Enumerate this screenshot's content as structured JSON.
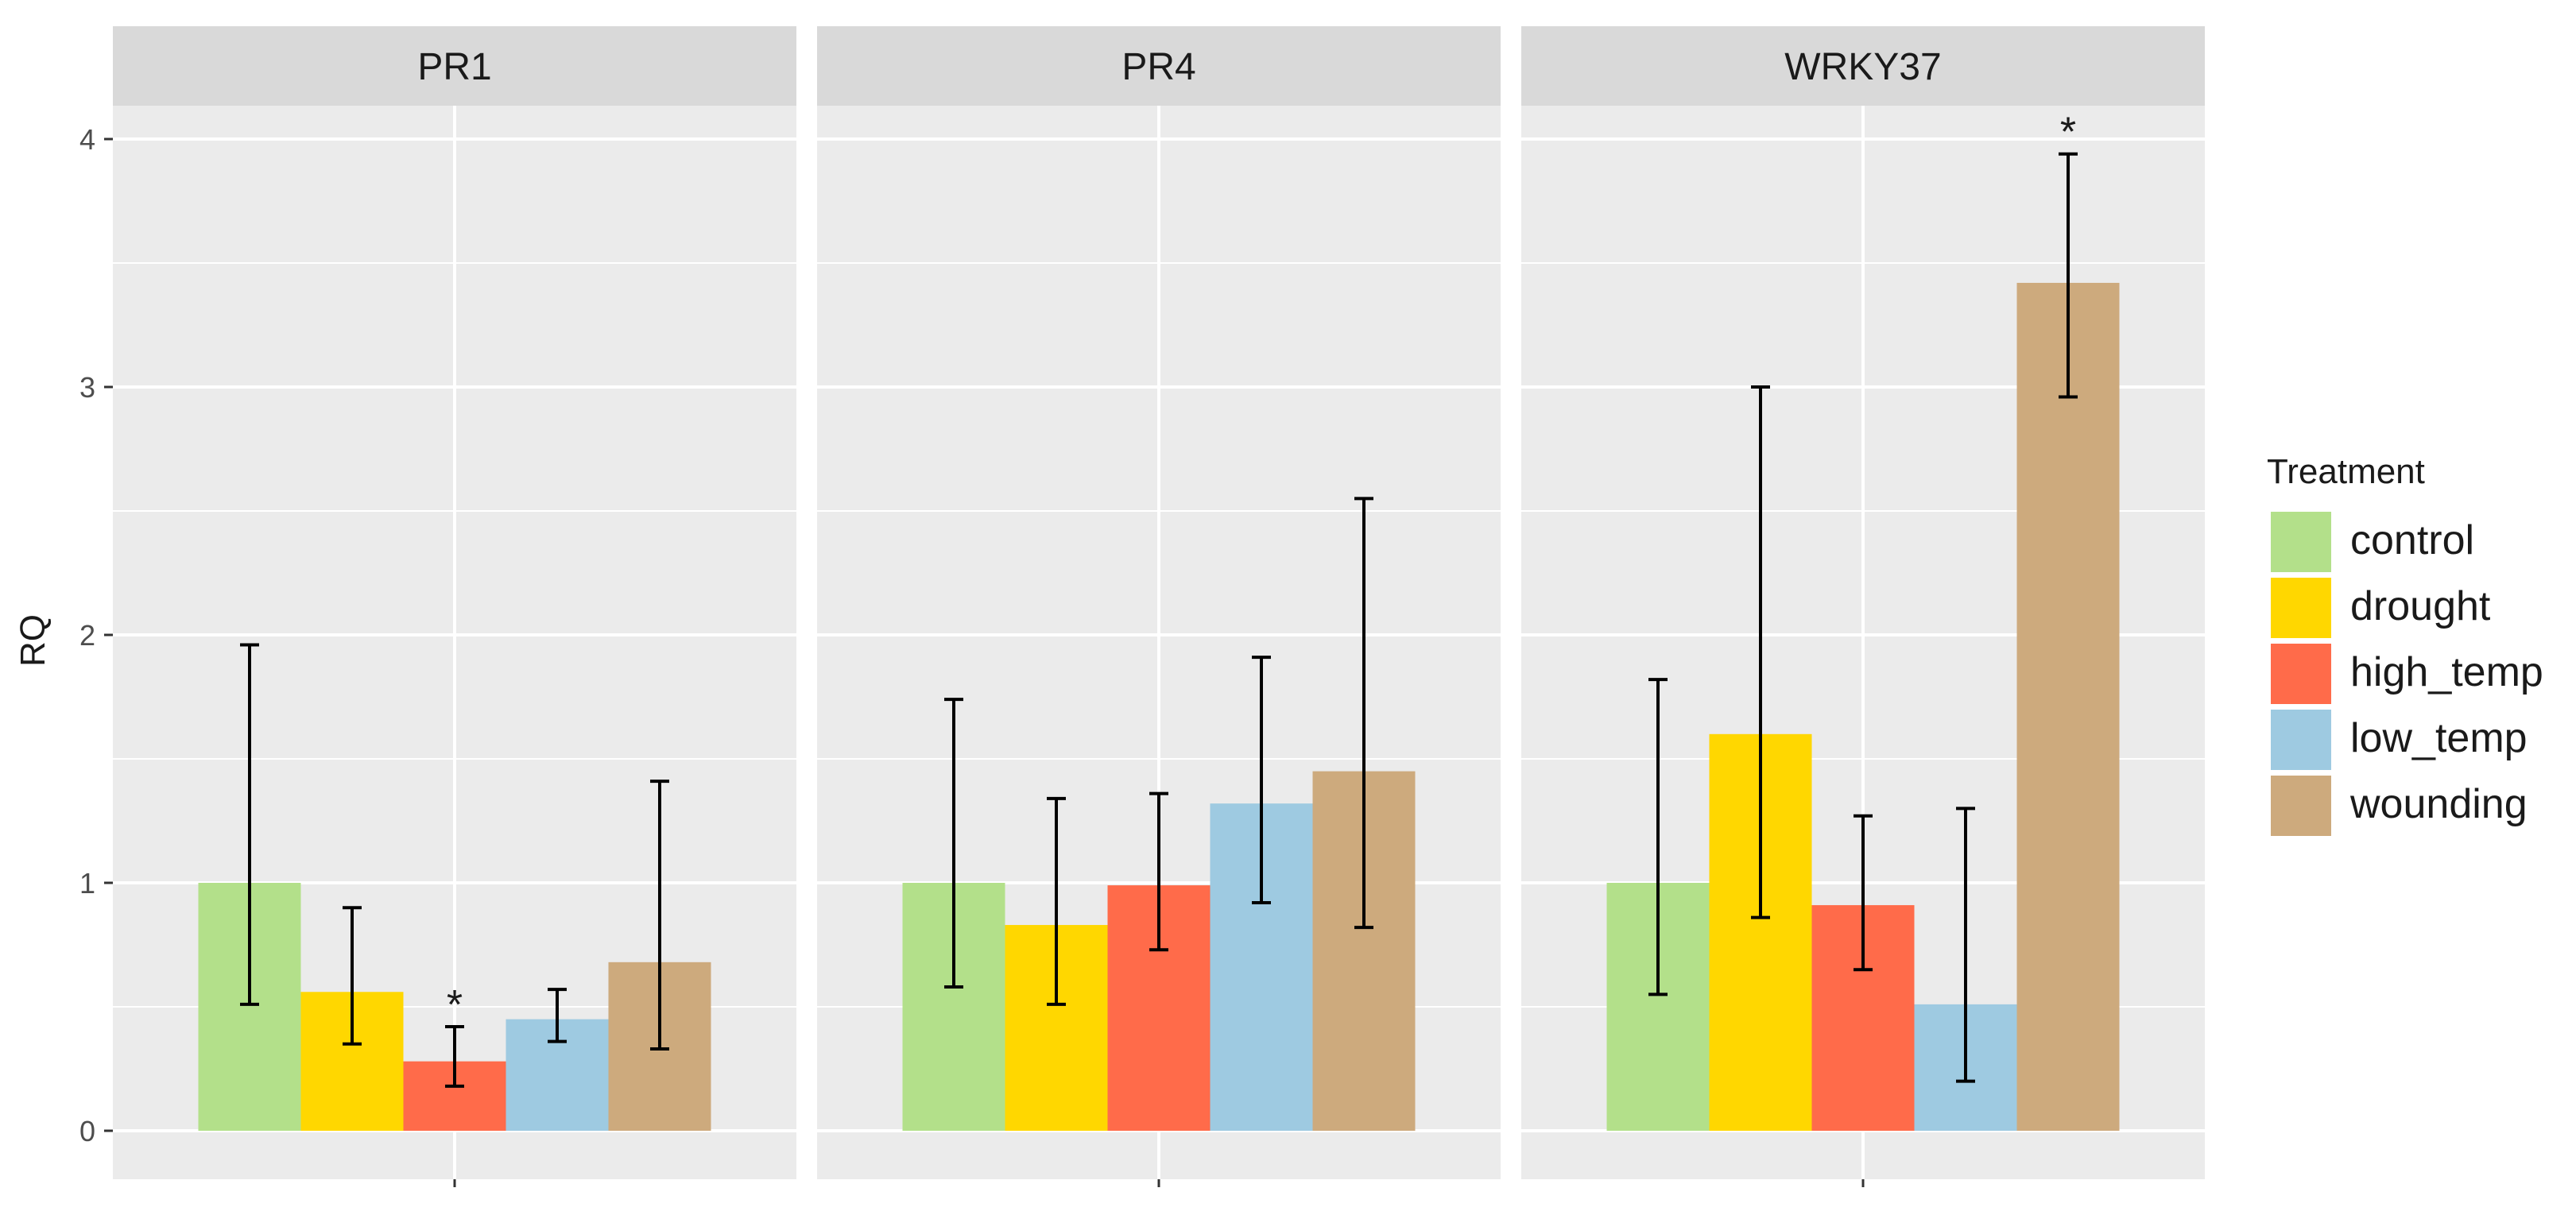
{
  "chart_data": {
    "type": "bar",
    "ylabel": "RQ",
    "xlabel": "",
    "ylim": [
      0,
      4
    ],
    "yticks": [
      0,
      1,
      2,
      3,
      4
    ],
    "panels": [
      {
        "name": "PR1",
        "bars": [
          {
            "treatment": "control",
            "value": 1.0,
            "err_low": 0.51,
            "err_high": 1.96,
            "signif": ""
          },
          {
            "treatment": "drought",
            "value": 0.56,
            "err_low": 0.35,
            "err_high": 0.9,
            "signif": ""
          },
          {
            "treatment": "high_temp",
            "value": 0.28,
            "err_low": 0.18,
            "err_high": 0.42,
            "signif": "*"
          },
          {
            "treatment": "low_temp",
            "value": 0.45,
            "err_low": 0.36,
            "err_high": 0.57,
            "signif": ""
          },
          {
            "treatment": "wounding",
            "value": 0.68,
            "err_low": 0.33,
            "err_high": 1.41,
            "signif": ""
          }
        ]
      },
      {
        "name": "PR4",
        "bars": [
          {
            "treatment": "control",
            "value": 1.0,
            "err_low": 0.58,
            "err_high": 1.74,
            "signif": ""
          },
          {
            "treatment": "drought",
            "value": 0.83,
            "err_low": 0.51,
            "err_high": 1.34,
            "signif": ""
          },
          {
            "treatment": "high_temp",
            "value": 0.99,
            "err_low": 0.73,
            "err_high": 1.36,
            "signif": ""
          },
          {
            "treatment": "low_temp",
            "value": 1.32,
            "err_low": 0.92,
            "err_high": 1.91,
            "signif": ""
          },
          {
            "treatment": "wounding",
            "value": 1.45,
            "err_low": 0.82,
            "err_high": 2.55,
            "signif": ""
          }
        ]
      },
      {
        "name": "WRKY37",
        "bars": [
          {
            "treatment": "control",
            "value": 1.0,
            "err_low": 0.55,
            "err_high": 1.82,
            "signif": ""
          },
          {
            "treatment": "drought",
            "value": 1.6,
            "err_low": 0.86,
            "err_high": 3.0,
            "signif": ""
          },
          {
            "treatment": "high_temp",
            "value": 0.91,
            "err_low": 0.65,
            "err_high": 1.27,
            "signif": ""
          },
          {
            "treatment": "low_temp",
            "value": 0.51,
            "err_low": 0.2,
            "err_high": 1.3,
            "signif": ""
          },
          {
            "treatment": "wounding",
            "value": 3.42,
            "err_low": 2.96,
            "err_high": 3.94,
            "signif": "*"
          }
        ]
      }
    ],
    "legend": {
      "title": "Treatment",
      "position": "right",
      "entries": [
        {
          "label": "control",
          "color": "#b3e08a"
        },
        {
          "label": "drought",
          "color": "#ffd700"
        },
        {
          "label": "high_temp",
          "color": "#ff6b4a"
        },
        {
          "label": "low_temp",
          "color": "#9ecae1"
        },
        {
          "label": "wounding",
          "color": "#cdaa7d"
        }
      ]
    },
    "colors": {
      "panel_bg": "#ebebeb",
      "strip_bg": "#d9d9d9",
      "grid": "#ffffff",
      "text": "#1a1a1a",
      "axis_text": "#4d4d4d"
    }
  }
}
